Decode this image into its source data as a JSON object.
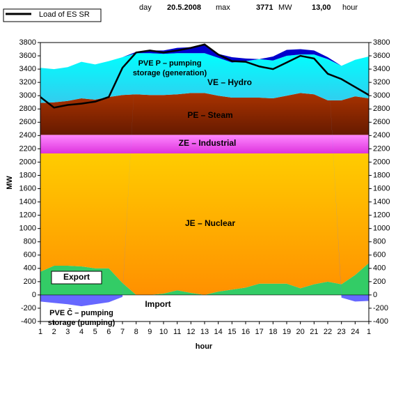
{
  "chart_data": {
    "type": "stacked-area",
    "header": {
      "day_label": "day",
      "day": "20.5.2008",
      "max_label": "max",
      "max": 3771,
      "max_unit": "MW",
      "max_hour": "13,00",
      "hour_label": "hour"
    },
    "x_label": "hour",
    "y_label": "MW",
    "categories": [
      "1",
      "2",
      "3",
      "4",
      "5",
      "6",
      "7",
      "8",
      "9",
      "10",
      "11",
      "12",
      "13",
      "14",
      "15",
      "16",
      "17",
      "18",
      "19",
      "20",
      "21",
      "22",
      "23",
      "24",
      "1"
    ],
    "ylim": [
      -400,
      3800
    ],
    "yticks": [
      -400,
      -200,
      0,
      200,
      400,
      600,
      800,
      1000,
      1200,
      1400,
      1600,
      1800,
      2000,
      2200,
      2400,
      2600,
      2800,
      3000,
      3200,
      3400,
      3600,
      3800
    ],
    "series": [
      {
        "name": "Export",
        "color": "#33cc66",
        "values": [
          350,
          440,
          440,
          430,
          400,
          400,
          180,
          0,
          0,
          20,
          70,
          30,
          0,
          50,
          80,
          110,
          170,
          170,
          170,
          100,
          160,
          200,
          160,
          300,
          480
        ]
      },
      {
        "name": "JE – Nuclear",
        "color": "#ffaa00",
        "values": [
          1780,
          1690,
          1690,
          1700,
          1730,
          1730,
          1950,
          2130,
          2130,
          2110,
          2060,
          2100,
          2130,
          2080,
          2050,
          2020,
          1960,
          1960,
          1960,
          2030,
          1970,
          1930,
          1970,
          1830,
          1650
        ]
      },
      {
        "name": "ZE – Industrial",
        "color": "#ff66ff",
        "values": [
          280,
          280,
          280,
          280,
          280,
          280,
          280,
          280,
          280,
          280,
          280,
          280,
          280,
          280,
          280,
          280,
          280,
          280,
          280,
          280,
          280,
          280,
          280,
          280,
          280
        ]
      },
      {
        "name": "PE – Steam",
        "color": "#8b2500",
        "values": [
          480,
          490,
          510,
          550,
          530,
          570,
          600,
          610,
          600,
          600,
          610,
          630,
          630,
          590,
          560,
          560,
          560,
          550,
          590,
          630,
          610,
          520,
          520,
          580,
          550
        ]
      },
      {
        "name": "VE – Hydro",
        "color": "#33ddff",
        "values": [
          530,
          500,
          510,
          550,
          530,
          540,
          570,
          620,
          630,
          620,
          620,
          600,
          600,
          570,
          530,
          550,
          580,
          570,
          600,
          580,
          600,
          620,
          520,
          550,
          630
        ]
      },
      {
        "name": "PVE P – pumping storage (generation)",
        "color": "#0000cc",
        "values": [
          0,
          0,
          0,
          0,
          0,
          0,
          0,
          20,
          40,
          50,
          80,
          90,
          120,
          60,
          80,
          40,
          0,
          60,
          90,
          80,
          60,
          30,
          0,
          0,
          0
        ]
      },
      {
        "name": "PVE Č – pumping storage (pumping)",
        "color": "#3399ff",
        "values": [
          -100,
          -120,
          -140,
          -170,
          -140,
          -110,
          -30,
          0,
          0,
          0,
          0,
          0,
          0,
          0,
          0,
          0,
          0,
          0,
          0,
          0,
          0,
          0,
          -40,
          -100,
          -90
        ]
      }
    ],
    "line": {
      "name": "Load of ES SR",
      "color": "#000000",
      "values": [
        2980,
        2820,
        2860,
        2880,
        2910,
        2980,
        3420,
        3650,
        3680,
        3650,
        3680,
        3720,
        3771,
        3620,
        3520,
        3510,
        3440,
        3400,
        3500,
        3600,
        3560,
        3330,
        3250,
        3130,
        3010
      ]
    },
    "annotations": [
      "Import"
    ]
  }
}
